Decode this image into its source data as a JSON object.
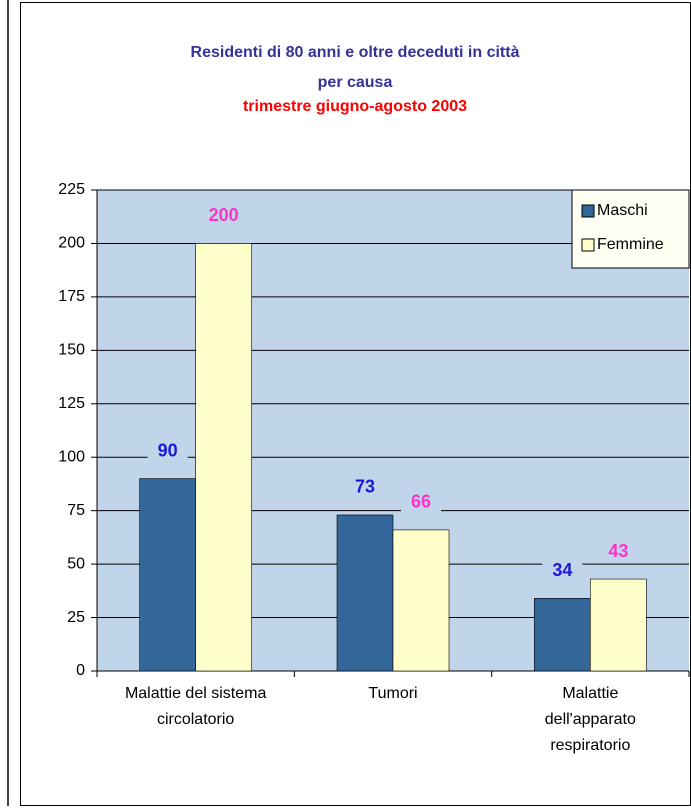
{
  "chart_data": {
    "type": "bar",
    "title": "Residenti di 80 anni e oltre deceduti  in città\nper causa",
    "subtitle": "trimestre giugno-agosto 2003",
    "categories": [
      "Malattie del sistema\ncircolatorio",
      "Tumori",
      "Malattie\ndell'apparato\nrespiratorio"
    ],
    "series": [
      {
        "name": "Maschi",
        "color": "#336699",
        "label_color": "#1a1ad4",
        "values": [
          90,
          73,
          34
        ]
      },
      {
        "name": "Femmine",
        "color": "#ffffcc",
        "label_color": "#ff33cc",
        "values": [
          200,
          66,
          43
        ]
      }
    ],
    "ylim": [
      0,
      225
    ],
    "yticks": [
      0,
      25,
      50,
      75,
      100,
      125,
      150,
      175,
      200,
      225
    ],
    "grid": true,
    "legend": "top-right",
    "plot_color": "#c0d4ea"
  }
}
